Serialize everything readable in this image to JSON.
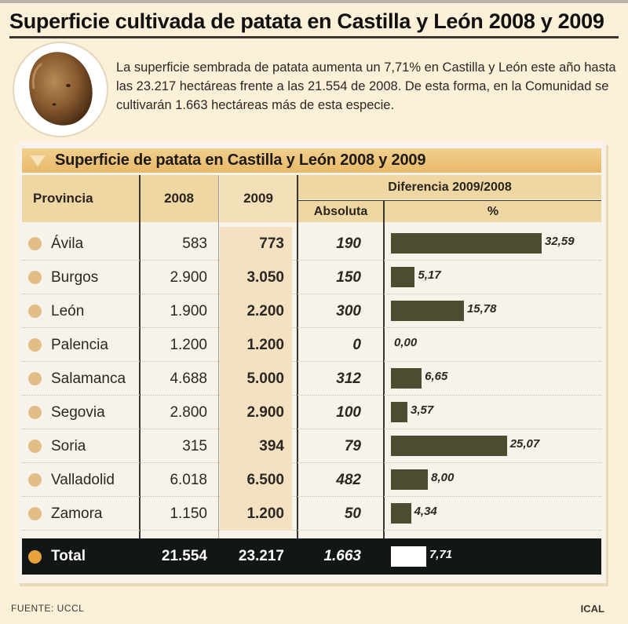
{
  "title": "Superficie cultivada de patata en Castilla y León 2008 y 2009",
  "intro": "La superficie sembrada de patata aumenta un 7,71% en Castilla y León este año hasta las 23.217 hectáreas frente a las 21.554 de 2008. De esta forma, en la Comunidad se cultivarán 1.663 hectáreas más de esta especie.",
  "table_title": "Superficie de patata en Castilla y León 2008 y 2009",
  "headers": {
    "provincia": "Provincia",
    "y2008": "2008",
    "y2009": "2009",
    "diferencia": "Diferencia  2009/2008",
    "absoluta": "Absoluta",
    "pct": "%"
  },
  "colors": {
    "bar": "#4d4c30",
    "total_bg": "#121615",
    "header": "#efd7a3",
    "dot": "#e3bd86"
  },
  "chart_data": {
    "type": "table",
    "title": "Superficie de patata en Castilla y León 2008 y 2009",
    "columns": [
      "Provincia",
      "2008",
      "2009",
      "Absoluta",
      "%"
    ],
    "rows": [
      {
        "provincia": "Ávila",
        "y2008": "583",
        "y2009": "773",
        "absoluta": "190",
        "pct_label": "32,59",
        "pct": 32.59
      },
      {
        "provincia": "Burgos",
        "y2008": "2.900",
        "y2009": "3.050",
        "absoluta": "150",
        "pct_label": "5,17",
        "pct": 5.17
      },
      {
        "provincia": "León",
        "y2008": "1.900",
        "y2009": "2.200",
        "absoluta": "300",
        "pct_label": "15,78",
        "pct": 15.78
      },
      {
        "provincia": "Palencia",
        "y2008": "1.200",
        "y2009": "1.200",
        "absoluta": "0",
        "pct_label": "0,00",
        "pct": 0.0
      },
      {
        "provincia": "Salamanca",
        "y2008": "4.688",
        "y2009": "5.000",
        "absoluta": "312",
        "pct_label": "6,65",
        "pct": 6.65
      },
      {
        "provincia": "Segovia",
        "y2008": "2.800",
        "y2009": "2.900",
        "absoluta": "100",
        "pct_label": "3,57",
        "pct": 3.57
      },
      {
        "provincia": "Soria",
        "y2008": "315",
        "y2009": "394",
        "absoluta": "79",
        "pct_label": "25,07",
        "pct": 25.07
      },
      {
        "provincia": "Valladolid",
        "y2008": "6.018",
        "y2009": "6.500",
        "absoluta": "482",
        "pct_label": "8,00",
        "pct": 8.0
      },
      {
        "provincia": "Zamora",
        "y2008": "1.150",
        "y2009": "1.200",
        "absoluta": "50",
        "pct_label": "4,34",
        "pct": 4.34
      }
    ],
    "total": {
      "provincia": "Total",
      "y2008": "21.554",
      "y2009": "23.217",
      "absoluta": "1.663",
      "pct_label": "7,71",
      "pct": 7.71
    }
  },
  "footer": {
    "source": "FUENTE: UCCL",
    "brand": "ICAL"
  },
  "icons": {
    "potato": "potato-icon",
    "bullet": "circle-bullet-icon",
    "header_marker": "triangle-down-icon"
  }
}
